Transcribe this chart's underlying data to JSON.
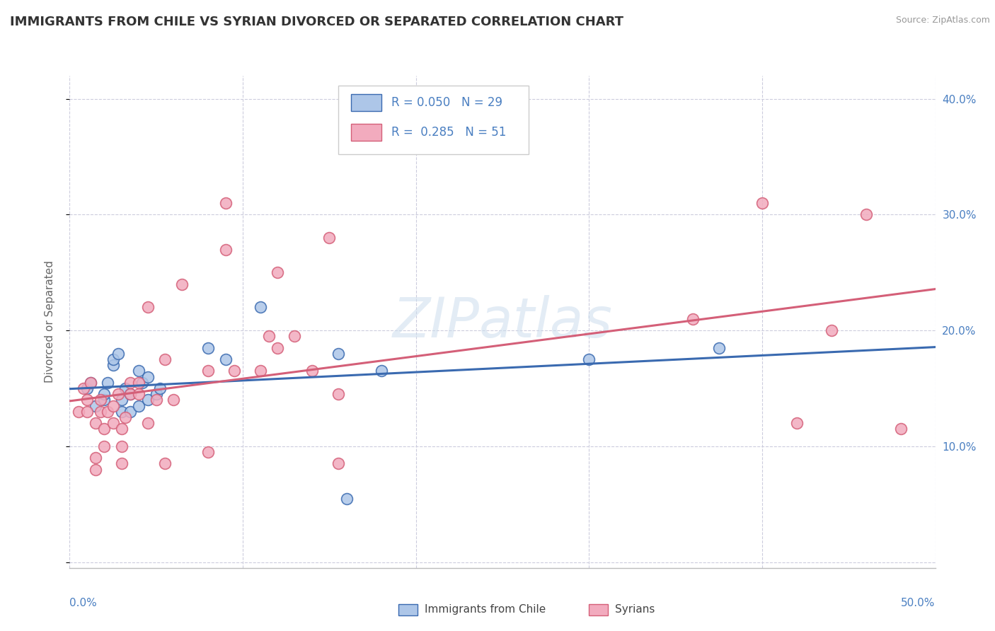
{
  "title": "IMMIGRANTS FROM CHILE VS SYRIAN DIVORCED OR SEPARATED CORRELATION CHART",
  "source": "Source: ZipAtlas.com",
  "ylabel": "Divorced or Separated",
  "legend_label1": "Immigrants from Chile",
  "legend_label2": "Syrians",
  "r1": 0.05,
  "n1": 29,
  "r2": 0.285,
  "n2": 51,
  "color_blue": "#adc6e8",
  "color_pink": "#f2abbe",
  "line_blue": "#3a6ab0",
  "line_pink": "#d45f78",
  "xlim": [
    0.0,
    50.0
  ],
  "ylim": [
    -0.5,
    42.0
  ],
  "watermark": "ZIPatlas",
  "blue_scatter_x": [
    1.0,
    1.2,
    1.5,
    2.0,
    2.0,
    2.2,
    2.5,
    2.5,
    2.8,
    3.0,
    3.0,
    3.2,
    3.5,
    3.5,
    4.0,
    4.0,
    4.2,
    4.5,
    4.5,
    5.0,
    5.2,
    8.0,
    9.0,
    11.0,
    15.5,
    16.0,
    18.0,
    30.0,
    37.5
  ],
  "blue_scatter_y": [
    15.0,
    15.5,
    13.5,
    14.0,
    14.5,
    15.5,
    17.0,
    17.5,
    18.0,
    13.0,
    14.0,
    15.0,
    13.0,
    14.5,
    13.5,
    16.5,
    15.5,
    14.0,
    16.0,
    14.5,
    15.0,
    18.5,
    17.5,
    22.0,
    18.0,
    5.5,
    16.5,
    17.5,
    18.5
  ],
  "pink_scatter_x": [
    0.5,
    0.8,
    1.0,
    1.0,
    1.2,
    1.5,
    1.5,
    1.5,
    1.8,
    1.8,
    2.0,
    2.0,
    2.2,
    2.5,
    2.5,
    2.8,
    3.0,
    3.0,
    3.0,
    3.2,
    3.5,
    3.5,
    4.0,
    4.0,
    4.5,
    4.5,
    5.0,
    5.5,
    5.5,
    6.0,
    6.5,
    8.0,
    8.0,
    9.0,
    9.0,
    9.5,
    11.0,
    11.5,
    12.0,
    12.0,
    13.0,
    14.0,
    15.0,
    15.5,
    15.5,
    36.0,
    40.0,
    42.0,
    44.0,
    46.0,
    48.0
  ],
  "pink_scatter_y": [
    13.0,
    15.0,
    13.0,
    14.0,
    15.5,
    8.0,
    9.0,
    12.0,
    13.0,
    14.0,
    10.0,
    11.5,
    13.0,
    12.0,
    13.5,
    14.5,
    8.5,
    10.0,
    11.5,
    12.5,
    14.5,
    15.5,
    14.5,
    15.5,
    22.0,
    12.0,
    14.0,
    17.5,
    8.5,
    14.0,
    24.0,
    9.5,
    16.5,
    27.0,
    31.0,
    16.5,
    16.5,
    19.5,
    18.5,
    25.0,
    19.5,
    16.5,
    28.0,
    8.5,
    14.5,
    21.0,
    31.0,
    12.0,
    20.0,
    30.0,
    11.5
  ],
  "background_color": "#ffffff",
  "grid_color": "#ccccdd",
  "title_color": "#333333",
  "axis_label_color": "#4a7fc1",
  "ytick_values": [
    0,
    10,
    20,
    30,
    40
  ],
  "xtick_values": [
    0,
    10,
    20,
    30,
    40,
    50
  ]
}
